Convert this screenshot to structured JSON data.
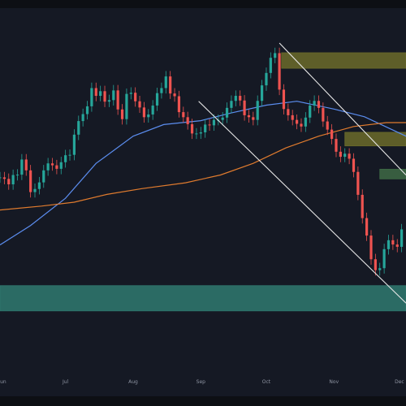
{
  "chart_data": {
    "type": "candlestick",
    "colors": {
      "background": "#151924",
      "frame": "#0d0f14",
      "up": "#26a69a",
      "down": "#ef5350",
      "ma_fast": "#5b8def",
      "ma_slow": "#e07b2e",
      "trendline": "#e8e8e8",
      "zone_supply": "#6b6b2a",
      "zone_mid": "#3e6a45",
      "zone_demand": "#2f7a70"
    },
    "x_axis": {
      "tick_labels": [
        "Jun",
        "Jul",
        "Aug",
        "Sep",
        "Oct",
        "Nov",
        "Dec"
      ],
      "tick_dates": [
        "2023-06-01",
        "2023-07-01",
        "2023-08-01",
        "2023-09-01",
        "2023-10-01",
        "2023-11-01",
        "2023-12-01"
      ],
      "range": [
        "2023-06-01",
        "2023-12-04"
      ]
    },
    "y_axis": {
      "range": [
        0,
        100
      ]
    },
    "candles": [
      {
        "date": "2023-06-01",
        "close": 56.4
      },
      {
        "date": "2023-06-03",
        "close": 56.0
      },
      {
        "date": "2023-06-05",
        "close": 54.6
      },
      {
        "date": "2023-06-07",
        "close": 57.0
      },
      {
        "date": "2023-06-09",
        "close": 57.1
      },
      {
        "date": "2023-06-11",
        "close": 61.0
      },
      {
        "date": "2023-06-13",
        "close": 58.2
      },
      {
        "date": "2023-06-15",
        "close": 52.6
      },
      {
        "date": "2023-06-17",
        "close": 53.4
      },
      {
        "date": "2023-06-19",
        "close": 55.1
      },
      {
        "date": "2023-06-21",
        "close": 58.2
      },
      {
        "date": "2023-06-23",
        "close": 60.0
      },
      {
        "date": "2023-06-25",
        "close": 59.5
      },
      {
        "date": "2023-06-27",
        "close": 58.6
      },
      {
        "date": "2023-06-29",
        "close": 60.3
      },
      {
        "date": "2023-07-01",
        "close": 62.1
      },
      {
        "date": "2023-07-03",
        "close": 62.2
      },
      {
        "date": "2023-07-05",
        "close": 67.4
      },
      {
        "date": "2023-07-07",
        "close": 70.9
      },
      {
        "date": "2023-07-09",
        "close": 72.7
      },
      {
        "date": "2023-07-11",
        "close": 74.7
      },
      {
        "date": "2023-07-13",
        "close": 79.4
      },
      {
        "date": "2023-07-15",
        "close": 77.4
      },
      {
        "date": "2023-07-17",
        "close": 78.6
      },
      {
        "date": "2023-07-19",
        "close": 75.9
      },
      {
        "date": "2023-07-21",
        "close": 76.3
      },
      {
        "date": "2023-07-23",
        "close": 78.8
      },
      {
        "date": "2023-07-25",
        "close": 73.9
      },
      {
        "date": "2023-07-27",
        "close": 71.4
      },
      {
        "date": "2023-07-29",
        "close": 77.9
      },
      {
        "date": "2023-07-31",
        "close": 78.2
      },
      {
        "date": "2023-08-02",
        "close": 76.0
      },
      {
        "date": "2023-08-04",
        "close": 74.4
      },
      {
        "date": "2023-08-06",
        "close": 71.9
      },
      {
        "date": "2023-08-08",
        "close": 72.6
      },
      {
        "date": "2023-08-10",
        "close": 74.9
      },
      {
        "date": "2023-08-12",
        "close": 78.1
      },
      {
        "date": "2023-08-14",
        "close": 79.4
      },
      {
        "date": "2023-08-16",
        "close": 82.4
      },
      {
        "date": "2023-08-18",
        "close": 78.0
      },
      {
        "date": "2023-08-20",
        "close": 77.3
      },
      {
        "date": "2023-08-22",
        "close": 73.2
      },
      {
        "date": "2023-08-24",
        "close": 71.9
      },
      {
        "date": "2023-08-26",
        "close": 70.1
      },
      {
        "date": "2023-08-28",
        "close": 67.7
      },
      {
        "date": "2023-08-30",
        "close": 67.7
      },
      {
        "date": "2023-09-01",
        "close": 68.0
      },
      {
        "date": "2023-09-03",
        "close": 70.0
      },
      {
        "date": "2023-09-05",
        "close": 69.8
      },
      {
        "date": "2023-09-07",
        "close": 71.2
      },
      {
        "date": "2023-09-09",
        "close": 71.2
      },
      {
        "date": "2023-09-11",
        "close": 71.8
      },
      {
        "date": "2023-09-13",
        "close": 74.3
      },
      {
        "date": "2023-09-15",
        "close": 76.1
      },
      {
        "date": "2023-09-17",
        "close": 77.4
      },
      {
        "date": "2023-09-19",
        "close": 76.2
      },
      {
        "date": "2023-09-21",
        "close": 72.4
      },
      {
        "date": "2023-09-23",
        "close": 71.9
      },
      {
        "date": "2023-09-25",
        "close": 71.2
      },
      {
        "date": "2023-09-27",
        "close": 76.1
      },
      {
        "date": "2023-09-29",
        "close": 80.1
      },
      {
        "date": "2023-10-01",
        "close": 83.3
      },
      {
        "date": "2023-10-03",
        "close": 87.2
      },
      {
        "date": "2023-10-05",
        "close": 88.4
      },
      {
        "date": "2023-10-07",
        "close": 79.0
      },
      {
        "date": "2023-10-09",
        "close": 74.0
      },
      {
        "date": "2023-10-11",
        "close": 72.4
      },
      {
        "date": "2023-10-13",
        "close": 71.2
      },
      {
        "date": "2023-10-15",
        "close": 70.2
      },
      {
        "date": "2023-10-17",
        "close": 69.5
      },
      {
        "date": "2023-10-19",
        "close": 71.8
      },
      {
        "date": "2023-10-21",
        "close": 74.9
      },
      {
        "date": "2023-10-23",
        "close": 76.1
      },
      {
        "date": "2023-10-25",
        "close": 74.3
      },
      {
        "date": "2023-10-27",
        "close": 70.8
      },
      {
        "date": "2023-10-29",
        "close": 68.7
      },
      {
        "date": "2023-10-31",
        "close": 66.3
      },
      {
        "date": "2023-11-02",
        "close": 63.0
      },
      {
        "date": "2023-11-04",
        "close": 61.7
      },
      {
        "date": "2023-11-06",
        "close": 62.5
      },
      {
        "date": "2023-11-08",
        "close": 61.2
      },
      {
        "date": "2023-11-10",
        "close": 57.8
      },
      {
        "date": "2023-11-12",
        "close": 51.9
      },
      {
        "date": "2023-11-14",
        "close": 45.9
      },
      {
        "date": "2023-11-16",
        "close": 41.4
      },
      {
        "date": "2023-11-18",
        "close": 35.3
      },
      {
        "date": "2023-11-20",
        "close": 32.5
      },
      {
        "date": "2023-11-22",
        "close": 33.0
      },
      {
        "date": "2023-11-24",
        "close": 37.9
      },
      {
        "date": "2023-11-26",
        "close": 40.2
      },
      {
        "date": "2023-11-28",
        "close": 39.1
      },
      {
        "date": "2023-11-30",
        "close": 38.5
      },
      {
        "date": "2023-12-02",
        "close": 43.0
      }
    ],
    "moving_averages": [
      {
        "color_key": "ma_fast",
        "points": [
          {
            "date": "2023-06-01",
            "value": 39.0
          },
          {
            "date": "2023-06-15",
            "value": 44.0
          },
          {
            "date": "2023-07-01",
            "value": 51.0
          },
          {
            "date": "2023-07-15",
            "value": 60.0
          },
          {
            "date": "2023-08-01",
            "value": 67.0
          },
          {
            "date": "2023-08-15",
            "value": 70.0
          },
          {
            "date": "2023-09-01",
            "value": 71.0
          },
          {
            "date": "2023-09-15",
            "value": 73.0
          },
          {
            "date": "2023-10-01",
            "value": 75.0
          },
          {
            "date": "2023-10-15",
            "value": 76.0
          },
          {
            "date": "2023-11-01",
            "value": 74.0
          },
          {
            "date": "2023-11-15",
            "value": 72.0
          },
          {
            "date": "2023-12-04",
            "value": 67.0
          }
        ]
      },
      {
        "color_key": "ma_slow",
        "points": [
          {
            "date": "2023-06-01",
            "value": 48.0
          },
          {
            "date": "2023-06-20",
            "value": 49.0
          },
          {
            "date": "2023-07-05",
            "value": 50.0
          },
          {
            "date": "2023-07-20",
            "value": 52.0
          },
          {
            "date": "2023-08-05",
            "value": 53.5
          },
          {
            "date": "2023-08-25",
            "value": 55.0
          },
          {
            "date": "2023-09-10",
            "value": 57.0
          },
          {
            "date": "2023-09-25",
            "value": 60.0
          },
          {
            "date": "2023-10-10",
            "value": 64.0
          },
          {
            "date": "2023-10-25",
            "value": 67.0
          },
          {
            "date": "2023-11-10",
            "value": 69.5
          },
          {
            "date": "2023-11-25",
            "value": 70.5
          },
          {
            "date": "2023-12-04",
            "value": 70.5
          }
        ]
      }
    ],
    "trendlines": [
      {
        "from": {
          "date": "2023-10-07",
          "value": 91.0
        },
        "to": {
          "date": "2023-12-04",
          "value": 57.0
        }
      },
      {
        "from": {
          "date": "2023-08-31",
          "value": 76.0
        },
        "to": {
          "date": "2023-12-04",
          "value": 24.0
        }
      }
    ],
    "zones": [
      {
        "color_key": "zone_supply",
        "from_date": "2023-10-08",
        "low": 84.5,
        "high": 88.5
      },
      {
        "color_key": "zone_supply",
        "from_date": "2023-11-06",
        "low": 64.5,
        "high": 68.0
      },
      {
        "color_key": "zone_mid",
        "from_date": "2023-11-22",
        "low": 56.0,
        "high": 58.5
      },
      {
        "color_key": "zone_demand",
        "from_date": "2023-06-01",
        "low": 22.0,
        "high": 28.5
      }
    ]
  }
}
